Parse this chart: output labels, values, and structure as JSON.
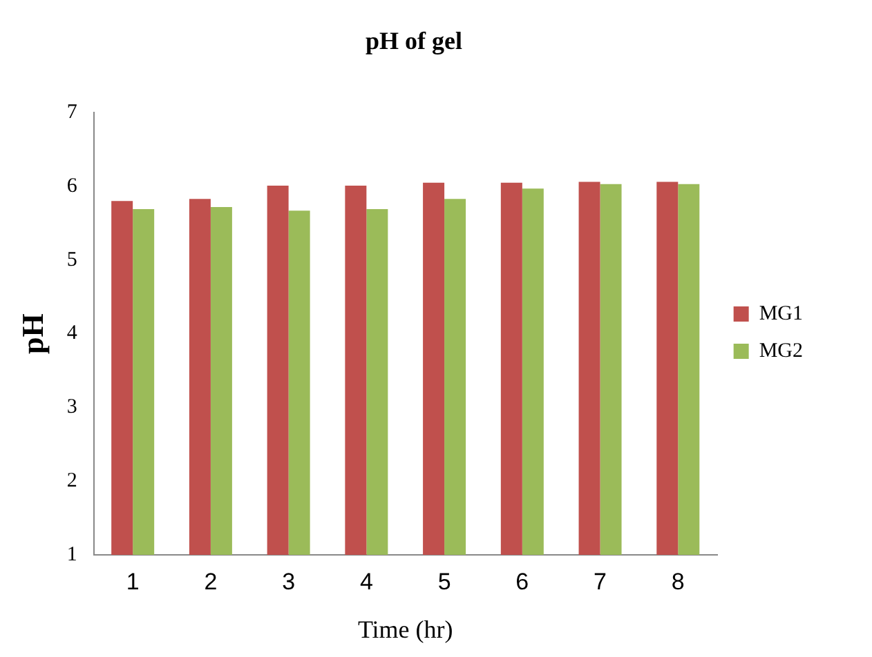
{
  "chart_data": {
    "type": "bar",
    "title": "pH of gel",
    "xlabel": "Time (hr)",
    "ylabel": "pH",
    "categories": [
      "1",
      "2",
      "3",
      "4",
      "5",
      "6",
      "7",
      "8"
    ],
    "series": [
      {
        "name": "MG1",
        "color": "#c0504d",
        "values": [
          5.8,
          5.83,
          6.01,
          6.01,
          6.05,
          6.05,
          6.06,
          6.06
        ]
      },
      {
        "name": "MG2",
        "color": "#9bbb59",
        "values": [
          5.69,
          5.72,
          5.67,
          5.69,
          5.83,
          5.97,
          6.03,
          6.03
        ]
      }
    ],
    "ylim": [
      1,
      7
    ],
    "yticks": [
      1,
      2,
      3,
      4,
      5,
      6,
      7
    ],
    "grid": false,
    "legend": "right"
  }
}
